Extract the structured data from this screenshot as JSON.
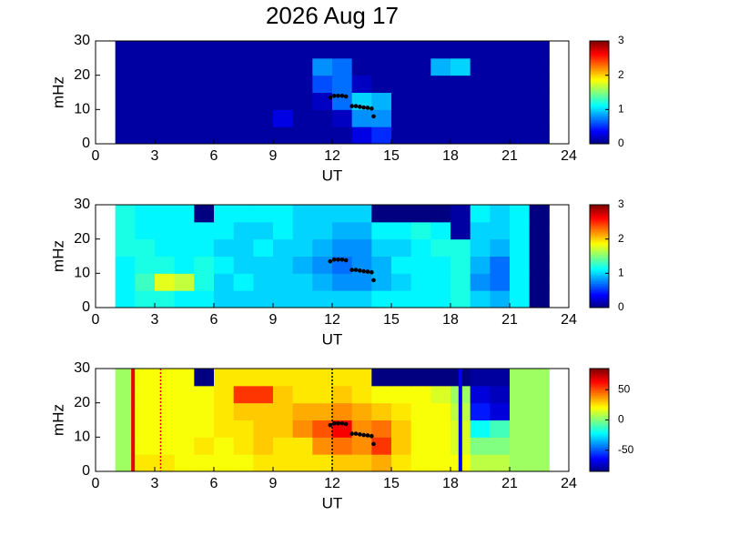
{
  "chart_data": [
    {
      "type": "heatmap",
      "title": "2026 Aug 17",
      "xlabel": "UT",
      "ylabel": "mHz",
      "xlim": [
        0,
        24
      ],
      "xticks": [
        0,
        3,
        6,
        9,
        12,
        15,
        18,
        21,
        24
      ],
      "ylim": [
        0,
        30
      ],
      "yticks": [
        0,
        10,
        20,
        30
      ],
      "xbins": [
        1,
        2,
        3,
        4,
        5,
        6,
        7,
        8,
        9,
        10,
        11,
        12,
        13,
        14,
        15,
        16,
        17,
        18,
        19,
        20,
        21,
        22,
        23
      ],
      "ybins": [
        0,
        5,
        10,
        15,
        20,
        25,
        30
      ],
      "z": [
        [
          0.1,
          0.1,
          0.1,
          0.1,
          0.1,
          0.1,
          0.1,
          0.1,
          0.1,
          0.1,
          0.1,
          0.1,
          0.3,
          0.5,
          0.1,
          0.1,
          0.1,
          0.1,
          0.1,
          0.1,
          0.1,
          0.1
        ],
        [
          0.1,
          0.1,
          0.1,
          0.1,
          0.1,
          0.1,
          0.1,
          0.1,
          0.3,
          0.1,
          0.1,
          0.2,
          0.8,
          0.8,
          0.1,
          0.1,
          0.1,
          0.1,
          0.1,
          0.1,
          0.1,
          0.1
        ],
        [
          0.1,
          0.1,
          0.1,
          0.1,
          0.1,
          0.1,
          0.1,
          0.1,
          0.1,
          0.1,
          0.2,
          0.7,
          1.0,
          0.9,
          0.1,
          0.1,
          0.1,
          0.1,
          0.1,
          0.1,
          0.1,
          0.1
        ],
        [
          0.1,
          0.1,
          0.1,
          0.1,
          0.1,
          0.1,
          0.1,
          0.1,
          0.1,
          0.1,
          0.6,
          0.7,
          0.2,
          0.1,
          0.1,
          0.1,
          0.1,
          0.1,
          0.1,
          0.1,
          0.1,
          0.1
        ],
        [
          0.1,
          0.1,
          0.1,
          0.1,
          0.1,
          0.1,
          0.1,
          0.1,
          0.1,
          0.1,
          0.8,
          0.7,
          0.1,
          0.1,
          0.1,
          0.1,
          0.9,
          1.0,
          0.1,
          0.1,
          0.1,
          0.1
        ],
        [
          0.1,
          0.1,
          0.1,
          0.1,
          0.1,
          0.1,
          0.1,
          0.1,
          0.1,
          0.1,
          0.1,
          0.1,
          0.1,
          0.1,
          0.1,
          0.1,
          0.1,
          0.1,
          0.1,
          0.1,
          0.1,
          0.1
        ]
      ],
      "colormap": "jet",
      "clim": [
        0,
        3
      ],
      "cticks": [
        0,
        1,
        2,
        3
      ],
      "series": [
        {
          "color": "#000000",
          "x": [
            11.9,
            12.1,
            12.3,
            12.5,
            12.7,
            13.0,
            13.2,
            13.4,
            13.6,
            13.8,
            14.0,
            14.1
          ],
          "y": [
            13.5,
            14,
            14,
            14,
            13.8,
            11,
            11,
            10.8,
            10.6,
            10.5,
            10.3,
            8
          ]
        }
      ]
    },
    {
      "type": "heatmap",
      "xlabel": "UT",
      "ylabel": "mHz",
      "xlim": [
        0,
        24
      ],
      "xticks": [
        0,
        3,
        6,
        9,
        12,
        15,
        18,
        21,
        24
      ],
      "ylim": [
        0,
        30
      ],
      "yticks": [
        0,
        10,
        20,
        30
      ],
      "xbins": [
        1,
        2,
        3,
        4,
        5,
        6,
        7,
        8,
        9,
        10,
        11,
        12,
        13,
        14,
        15,
        16,
        17,
        18,
        19,
        20,
        21,
        22,
        23
      ],
      "ybins": [
        0,
        5,
        10,
        15,
        20,
        25,
        30
      ],
      "z": [
        [
          1.1,
          1.2,
          1.2,
          1.1,
          1.1,
          1.0,
          1.0,
          1.0,
          1.0,
          1.0,
          1.0,
          1.0,
          1.0,
          1.1,
          1.1,
          1.1,
          1.1,
          1.2,
          1.0,
          0.9,
          1.1,
          0.0
        ],
        [
          1.1,
          1.3,
          1.8,
          1.7,
          1.2,
          1.0,
          1.1,
          1.0,
          1.0,
          1.0,
          0.9,
          0.8,
          0.8,
          0.9,
          1.0,
          1.1,
          1.1,
          1.2,
          0.8,
          0.7,
          1.1,
          0.0
        ],
        [
          1.1,
          1.2,
          1.2,
          1.1,
          1.2,
          1.1,
          1.0,
          1.0,
          1.0,
          0.9,
          0.8,
          0.7,
          0.8,
          0.9,
          1.1,
          1.1,
          1.1,
          1.2,
          0.9,
          0.7,
          1.1,
          0.0
        ],
        [
          1.2,
          1.2,
          1.1,
          1.1,
          1.1,
          1.0,
          1.0,
          1.1,
          1.0,
          1.0,
          0.9,
          0.8,
          0.8,
          1.0,
          1.0,
          1.1,
          1.2,
          1.2,
          1.0,
          0.9,
          1.1,
          0.0
        ],
        [
          1.2,
          1.1,
          1.1,
          1.1,
          1.1,
          1.1,
          1.0,
          1.0,
          1.1,
          1.0,
          1.0,
          0.9,
          0.9,
          1.1,
          1.1,
          1.2,
          1.1,
          0.1,
          1.0,
          1.0,
          1.1,
          0.0
        ],
        [
          1.2,
          1.1,
          1.1,
          1.1,
          0.0,
          1.1,
          1.1,
          1.1,
          1.1,
          1.0,
          1.0,
          1.0,
          1.0,
          0.0,
          0.0,
          0.0,
          0.0,
          0.1,
          1.1,
          1.0,
          1.1,
          0.0
        ]
      ],
      "colormap": "jet",
      "clim": [
        0,
        3
      ],
      "cticks": [
        0,
        1,
        2,
        3
      ],
      "series": [
        {
          "color": "#000000",
          "x": [
            11.9,
            12.1,
            12.3,
            12.5,
            12.7,
            13.0,
            13.2,
            13.4,
            13.6,
            13.8,
            14.0,
            14.1
          ],
          "y": [
            13.5,
            14,
            14,
            14,
            13.8,
            11,
            11,
            10.8,
            10.6,
            10.5,
            10.3,
            8
          ]
        }
      ]
    },
    {
      "type": "heatmap",
      "xlabel": "UT",
      "ylabel": "mHz",
      "xlim": [
        0,
        24
      ],
      "xticks": [
        0,
        3,
        6,
        9,
        12,
        15,
        18,
        21,
        24
      ],
      "ylim": [
        0,
        30
      ],
      "yticks": [
        0,
        10,
        20,
        30
      ],
      "xbins": [
        1,
        2,
        3,
        4,
        5,
        6,
        7,
        8,
        9,
        10,
        11,
        12,
        13,
        14,
        15,
        16,
        17,
        18,
        19,
        20,
        21,
        22,
        23
      ],
      "ybins": [
        0,
        5,
        10,
        15,
        20,
        25,
        30
      ],
      "z": [
        [
          5,
          25,
          25,
          20,
          20,
          20,
          20,
          25,
          25,
          25,
          25,
          30,
          30,
          35,
          25,
          20,
          20,
          20,
          10,
          10,
          5,
          5
        ],
        [
          5,
          20,
          20,
          20,
          25,
          20,
          25,
          30,
          25,
          25,
          40,
          45,
          40,
          55,
          30,
          20,
          20,
          15,
          0,
          0,
          5,
          5
        ],
        [
          5,
          20,
          20,
          20,
          20,
          25,
          25,
          30,
          30,
          40,
          50,
          65,
          40,
          45,
          30,
          20,
          20,
          15,
          -20,
          -10,
          5,
          5
        ],
        [
          5,
          20,
          20,
          20,
          20,
          25,
          30,
          30,
          30,
          35,
          35,
          40,
          35,
          30,
          25,
          20,
          20,
          10,
          -60,
          -70,
          5,
          5
        ],
        [
          5,
          20,
          20,
          20,
          20,
          25,
          55,
          55,
          30,
          25,
          25,
          30,
          25,
          20,
          20,
          20,
          15,
          5,
          -70,
          -75,
          5,
          5
        ],
        [
          5,
          20,
          20,
          20,
          -85,
          25,
          25,
          25,
          25,
          25,
          25,
          25,
          25,
          -85,
          -85,
          -85,
          -85,
          -85,
          -80,
          -80,
          5,
          5
        ]
      ],
      "colormap": "jet",
      "clim": [
        -85,
        85
      ],
      "cticks": [
        -50,
        0,
        50
      ],
      "vlines": [
        {
          "x": 1.9,
          "color": "#ee0000",
          "style": "solid"
        },
        {
          "x": 3.3,
          "color": "#ee0000",
          "style": "dotted"
        },
        {
          "x": 12,
          "color": "#000000",
          "style": "dotted"
        },
        {
          "x": 18.5,
          "color": "#0000ee",
          "style": "solid"
        }
      ],
      "series": [
        {
          "color": "#000000",
          "x": [
            11.9,
            12.1,
            12.3,
            12.5,
            12.7,
            13.0,
            13.2,
            13.4,
            13.6,
            13.8,
            14.0,
            14.1
          ],
          "y": [
            13.5,
            14,
            14,
            14,
            13.8,
            11,
            11,
            10.8,
            10.6,
            10.5,
            10.3,
            8
          ]
        }
      ]
    }
  ]
}
